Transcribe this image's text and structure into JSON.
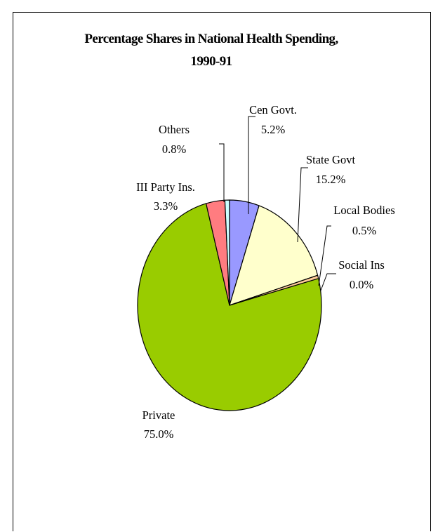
{
  "chart_data": {
    "type": "pie",
    "title": "Percentage Shares in National Health Spending,",
    "subtitle": "1990-91",
    "slices": [
      {
        "label": "Cen Govt.",
        "value": 5.2,
        "display": "5.2%",
        "color": "#9999FF"
      },
      {
        "label": "State Govt",
        "value": 15.2,
        "display": "15.2%",
        "color": "#FFFFCC"
      },
      {
        "label": "Local Bodies",
        "value": 0.5,
        "display": "0.5%",
        "color": "#FFCC99"
      },
      {
        "label": "Social Ins",
        "value": 0.0,
        "display": "0.0%",
        "color": "#CCFFCC"
      },
      {
        "label": "Private",
        "value": 75.0,
        "display": "75.0%",
        "color": "#99CC00"
      },
      {
        "label": "III Party Ins.",
        "value": 3.3,
        "display": "3.3%",
        "color": "#FF7C80"
      },
      {
        "label": "Others",
        "value": 0.8,
        "display": "0.8%",
        "color": "#CCFFFF"
      }
    ],
    "legend": "none",
    "start": "12 o'clock",
    "direction": "clockwise"
  }
}
